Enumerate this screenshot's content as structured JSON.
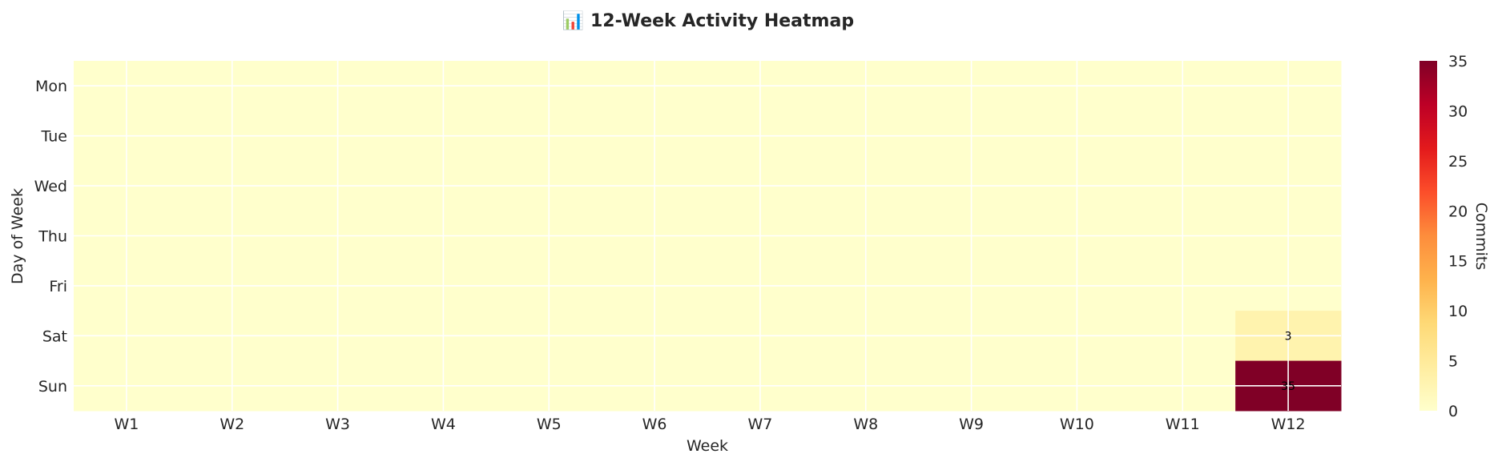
{
  "chart_data": {
    "type": "heatmap",
    "title": "📊 12-Week Activity Heatmap",
    "xlabel": "Week",
    "ylabel": "Day of Week",
    "x": [
      "W1",
      "W2",
      "W3",
      "W4",
      "W5",
      "W6",
      "W7",
      "W8",
      "W9",
      "W10",
      "W11",
      "W12"
    ],
    "y": [
      "Mon",
      "Tue",
      "Wed",
      "Thu",
      "Fri",
      "Sat",
      "Sun"
    ],
    "values": [
      [
        0,
        0,
        0,
        0,
        0,
        0,
        0,
        0,
        0,
        0,
        0,
        0
      ],
      [
        0,
        0,
        0,
        0,
        0,
        0,
        0,
        0,
        0,
        0,
        0,
        0
      ],
      [
        0,
        0,
        0,
        0,
        0,
        0,
        0,
        0,
        0,
        0,
        0,
        0
      ],
      [
        0,
        0,
        0,
        0,
        0,
        0,
        0,
        0,
        0,
        0,
        0,
        0
      ],
      [
        0,
        0,
        0,
        0,
        0,
        0,
        0,
        0,
        0,
        0,
        0,
        0
      ],
      [
        0,
        0,
        0,
        0,
        0,
        0,
        0,
        0,
        0,
        0,
        0,
        3
      ],
      [
        0,
        0,
        0,
        0,
        0,
        0,
        0,
        0,
        0,
        0,
        0,
        35
      ]
    ],
    "annotations": [
      {
        "x": "W12",
        "y": "Sat",
        "text": "3"
      },
      {
        "x": "W12",
        "y": "Sun",
        "text": "35"
      }
    ],
    "colorbar": {
      "label": "Commits",
      "range": [
        0,
        35
      ],
      "ticks": [
        "0",
        "5",
        "10",
        "15",
        "20",
        "25",
        "30",
        "35"
      ],
      "colormap": "YlOrRd",
      "colors": [
        "#ffffcc",
        "#ffeda0",
        "#fed976",
        "#feb24c",
        "#fd8d3c",
        "#fc4e2a",
        "#e31a1c",
        "#bd0026",
        "#800026"
      ]
    },
    "grid": true,
    "cell_border_color": "#ffffff"
  }
}
